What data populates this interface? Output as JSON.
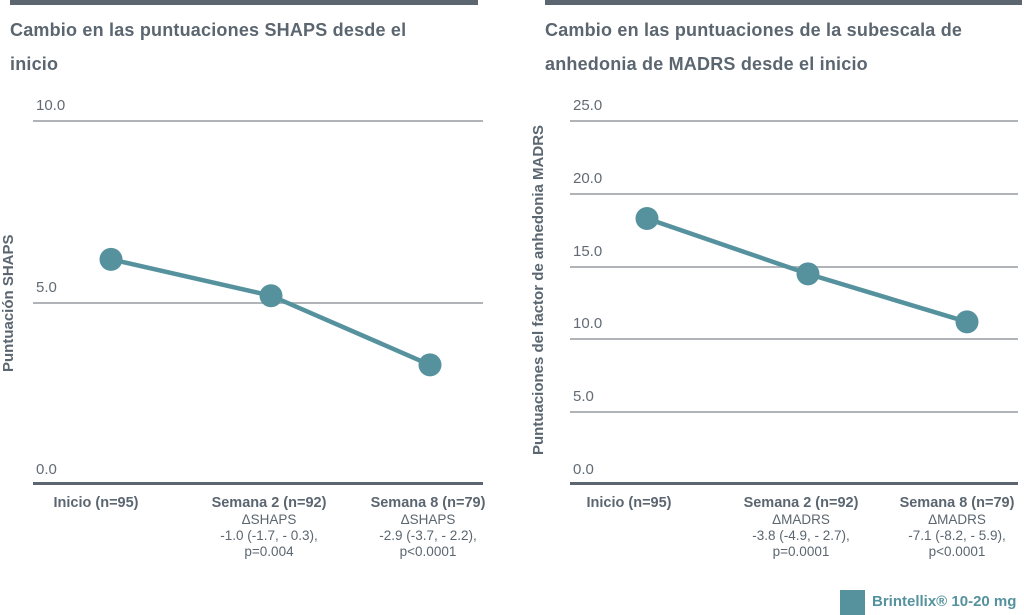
{
  "figure": {
    "background": "#FFFFFF",
    "colors": {
      "accent_teal": "#55929E",
      "text_slate": "#5B6670",
      "gridline_gray": "#B0B4B8",
      "tick_text": "#626B74"
    },
    "legend": {
      "label": "Brintellix® 10-20 mg",
      "swatch_color": "#55929E",
      "swatch_shape": "square",
      "position": "bottom-right"
    }
  },
  "chart_data": [
    {
      "type": "line",
      "title": "Cambio en las puntuaciones SHAPS desde el inicio",
      "title_lines": [
        "Cambio en las puntuaciones SHAPS desde el",
        "inicio"
      ],
      "xlabel": "",
      "ylabel": "Puntuación SHAPS",
      "ylim": [
        0,
        10
      ],
      "yticks": [
        0,
        5,
        10
      ],
      "ytick_labels": [
        "0.0",
        "5.0",
        "10.0"
      ],
      "grid": true,
      "categories": [
        "Inicio (n=95)",
        "Semana 2 (n=92)",
        "Semana 8 (n=79)"
      ],
      "category_sublabels": [
        [],
        [
          "ΔSHAPS",
          "-1.0 (-1.7, - 0.3),",
          "p=0.004"
        ],
        [
          "ΔSHAPS",
          "-2.9 (-3.7, - 2.2),",
          "p<0.0001"
        ]
      ],
      "series": [
        {
          "name": "Brintellix® 10-20 mg",
          "values": [
            6.2,
            5.2,
            3.3
          ],
          "color": "#55929E",
          "marker": "circle"
        }
      ]
    },
    {
      "type": "line",
      "title": "Cambio en las puntuaciones de la subescala de anhedonia de MADRS desde el inicio",
      "title_lines": [
        "Cambio en las puntuaciones de la subescala de",
        "anhedonia de MADRS desde el inicio"
      ],
      "xlabel": "",
      "ylabel": "Puntuaciones del factor de anhedonia MADRS",
      "ylim": [
        0,
        25
      ],
      "yticks": [
        0,
        5,
        10,
        15,
        20,
        25
      ],
      "ytick_labels": [
        "0.0",
        "5.0",
        "10.0",
        "15.0",
        "20.0",
        "25.0"
      ],
      "grid": true,
      "categories": [
        "Inicio (n=95)",
        "Semana 2 (n=92)",
        "Semana 8 (n=79)"
      ],
      "category_sublabels": [
        [],
        [
          "ΔMADRS",
          "-3.8 (-4.9, - 2.7),",
          "p=0.0001"
        ],
        [
          "ΔMADRS",
          "-7.1 (-8.2, - 5.9),",
          "p<0.0001"
        ]
      ],
      "series": [
        {
          "name": "Brintellix® 10-20 mg",
          "values": [
            18.3,
            14.5,
            11.2
          ],
          "color": "#55929E",
          "marker": "circle"
        }
      ]
    }
  ]
}
